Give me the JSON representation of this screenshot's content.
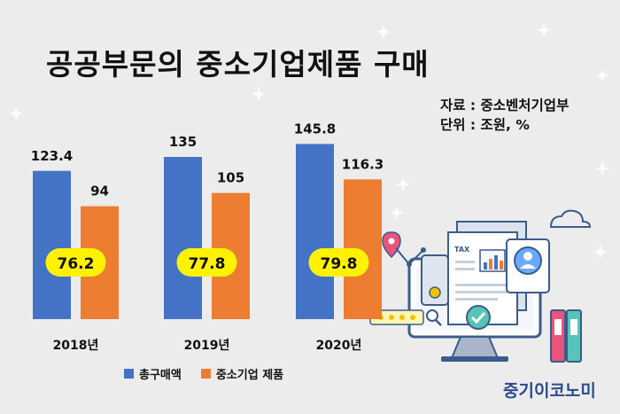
{
  "header": {
    "title": "공공부문의 중소기업제품 구매",
    "source_line": "자료 : 중소벤처기업부",
    "unit_line": "단위 : 조원, %"
  },
  "brand": "중기이코노미",
  "colors": {
    "total": "#4472c4",
    "sme": "#ed7d31",
    "pct_badge": "#fff200",
    "background": "#ececec"
  },
  "chart_data": {
    "type": "bar",
    "categories": [
      "2018년",
      "2019년",
      "2020년"
    ],
    "series": [
      {
        "name": "총구매액",
        "values": [
          123.4,
          135,
          145.8
        ],
        "labels": [
          "123.4",
          "135",
          "145.8"
        ]
      },
      {
        "name": "중소기업 제품",
        "values": [
          94,
          105,
          116.3
        ],
        "labels": [
          "94",
          "105",
          "116.3"
        ]
      }
    ],
    "ratio_labels": [
      "76.2",
      "77.8",
      "79.8"
    ],
    "ylim": [
      0,
      152
    ],
    "grid": false,
    "legend_position": "bottom"
  },
  "illustration": {
    "doc_label": "TAX",
    "icons": [
      "map-pin-icon",
      "cloud-icon",
      "document-icon",
      "bar-chart-icon",
      "user-icon",
      "check-icon",
      "magnifier-icon",
      "binder-icon",
      "monitor-icon"
    ]
  }
}
